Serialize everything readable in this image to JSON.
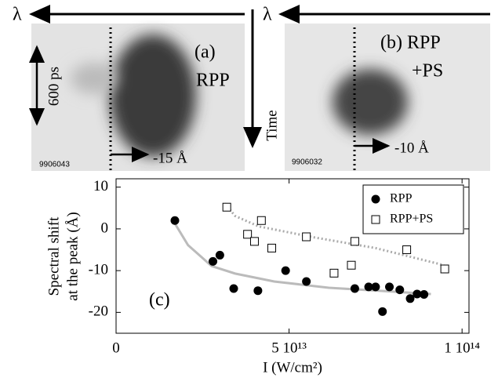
{
  "panels": [
    {
      "lambda": "λ",
      "duration": "600 ps",
      "label": "(a)",
      "label2": "RPP",
      "shot": "9906043",
      "shift": "-15 Å"
    },
    {
      "lambda": "λ",
      "time": "Time",
      "label": "(b) RPP",
      "label2": "+PS",
      "shot": "9906032",
      "shift": "-10 Å"
    }
  ],
  "chart_data": {
    "type": "scatter",
    "annotation": "(c)",
    "xlabel": "I (W/cm²)",
    "ylabel": [
      "Spectral shift",
      "at the peak (Å)"
    ],
    "xlim": [
      0,
      102000000000000.0
    ],
    "ylim": [
      -25,
      12
    ],
    "xticks": [
      0,
      {
        "value": 50000000000000.0,
        "label": "5 10¹³"
      },
      {
        "value": 100000000000000.0,
        "label": "1 10¹⁴"
      }
    ],
    "yticks": [
      -20,
      -10,
      0,
      10
    ],
    "legend": "upper right",
    "series": [
      {
        "name": "RPP",
        "marker": "filled-circle",
        "color": "#000",
        "x": [
          17000000000000.0,
          28000000000000.0,
          30000000000000.0,
          34000000000000.0,
          41000000000000.0,
          49000000000000.0,
          55000000000000.0,
          69000000000000.0,
          73000000000000.0,
          75000000000000.0,
          79000000000000.0,
          77000000000000.0,
          82000000000000.0,
          85000000000000.0,
          87000000000000.0,
          89000000000000.0
        ],
        "values": [
          2,
          -7.8,
          -6.3,
          -14.3,
          -14.8,
          -10,
          -12.6,
          -14.3,
          -13.9,
          -13.9,
          -13.9,
          -19.8,
          -14.6,
          -16.7,
          -15.6,
          -15.7
        ]
      },
      {
        "name": "RPP+PS",
        "marker": "open-square",
        "color": "#000",
        "x": [
          32000000000000.0,
          42000000000000.0,
          38000000000000.0,
          40000000000000.0,
          45000000000000.0,
          55000000000000.0,
          68000000000000.0,
          69000000000000.0,
          63000000000000.0,
          84000000000000.0,
          95000000000000.0
        ],
        "values": [
          5.2,
          2,
          -1.3,
          -3,
          -4.6,
          -1.9,
          -8.7,
          -3,
          -10.6,
          -5,
          -9.6
        ]
      }
    ],
    "fits": [
      {
        "color": "#bbb",
        "dash": false,
        "x": [
          16700000000000.0,
          20800000000000.0,
          27600000000000.0,
          34400000000000.0,
          45700000000000.0,
          61500000000000.0,
          79600000000000.0,
          91000000000000.0
        ],
        "values": [
          1.7,
          -3.9,
          -8.9,
          -10.7,
          -12.6,
          -14.1,
          -15,
          -15.6
        ]
      },
      {
        "color": "#aaa",
        "dash": true,
        "x": [
          31400000000000.0,
          34400000000000.0,
          41200000000000.0,
          57000000000000.0,
          75000000000000.0,
          94800000000000.0
        ],
        "values": [
          6.1,
          3.1,
          0.6,
          -2,
          -4.6,
          -8.7
        ]
      }
    ]
  }
}
